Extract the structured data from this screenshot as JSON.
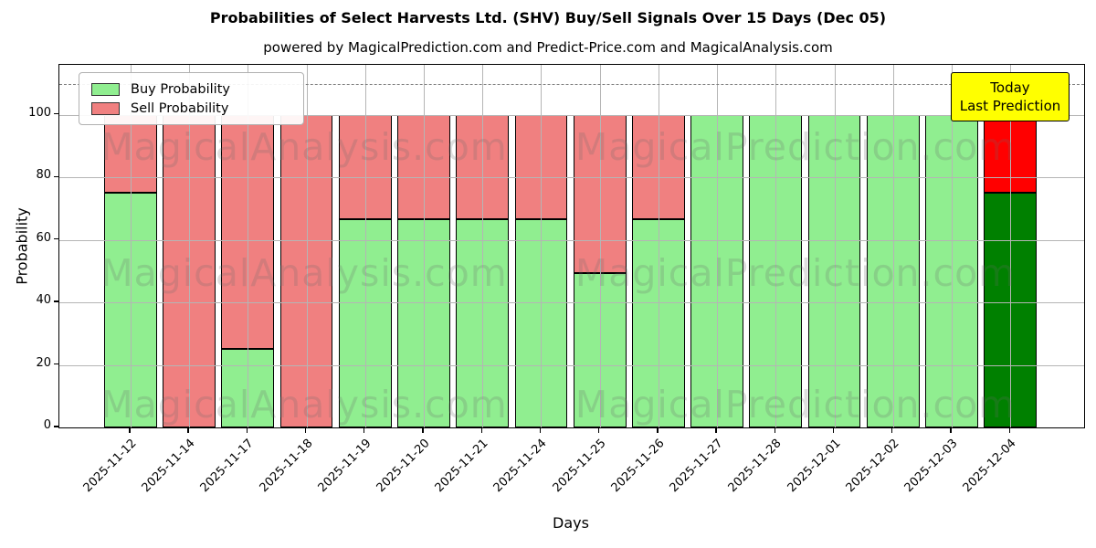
{
  "title": "Probabilities of Select Harvests Ltd. (SHV) Buy/Sell Signals Over 15 Days (Dec 05)",
  "subtitle": "powered by MagicalPrediction.com and Predict-Price.com and MagicalAnalysis.com",
  "axes": {
    "xlabel": "Days",
    "ylabel": "Probability",
    "yticks": [
      0,
      20,
      40,
      60,
      80,
      100
    ],
    "ylim": [
      0,
      116
    ],
    "dashed_line_y": 110,
    "grid": true
  },
  "legend": {
    "position": "upper-left",
    "items": [
      {
        "label": "Buy Probability",
        "color": "#90ee90"
      },
      {
        "label": "Sell Probability",
        "color": "#f08080"
      }
    ]
  },
  "annotation": {
    "line1": "Today",
    "line2": "Last Prediction",
    "bg_color": "#ffff00"
  },
  "watermarks": {
    "left_text": "MagicalAnalysis.com",
    "right_text": "MagicalPrediction.com"
  },
  "chart_data": {
    "type": "bar",
    "stacked": true,
    "categories": [
      "2025-11-12",
      "2025-11-14",
      "2025-11-17",
      "2025-11-18",
      "2025-11-19",
      "2025-11-20",
      "2025-11-21",
      "2025-11-24",
      "2025-11-25",
      "2025-11-26",
      "2025-11-27",
      "2025-11-28",
      "2025-12-01",
      "2025-12-02",
      "2025-12-03",
      "2025-12-04"
    ],
    "series": [
      {
        "name": "Buy Probability",
        "values": [
          75,
          0,
          25,
          0,
          66.67,
          66.67,
          66.67,
          66.67,
          49.5,
          66.67,
          100,
          100,
          100,
          100,
          100,
          75
        ]
      },
      {
        "name": "Sell Probability",
        "values": [
          25,
          100,
          75,
          100,
          33.33,
          33.33,
          33.33,
          33.33,
          50.5,
          33.33,
          0,
          0,
          0,
          0,
          0,
          25
        ]
      }
    ],
    "colors": {
      "buy": "#90ee90",
      "sell": "#f08080"
    },
    "today_index": 15,
    "today_colors": {
      "buy": "#008000",
      "sell": "#ff0000"
    },
    "title": "Probabilities of Select Harvests Ltd. (SHV) Buy/Sell Signals Over 15 Days (Dec 05)",
    "xlabel": "Days",
    "ylabel": "Probability",
    "ylim": [
      0,
      116
    ]
  }
}
